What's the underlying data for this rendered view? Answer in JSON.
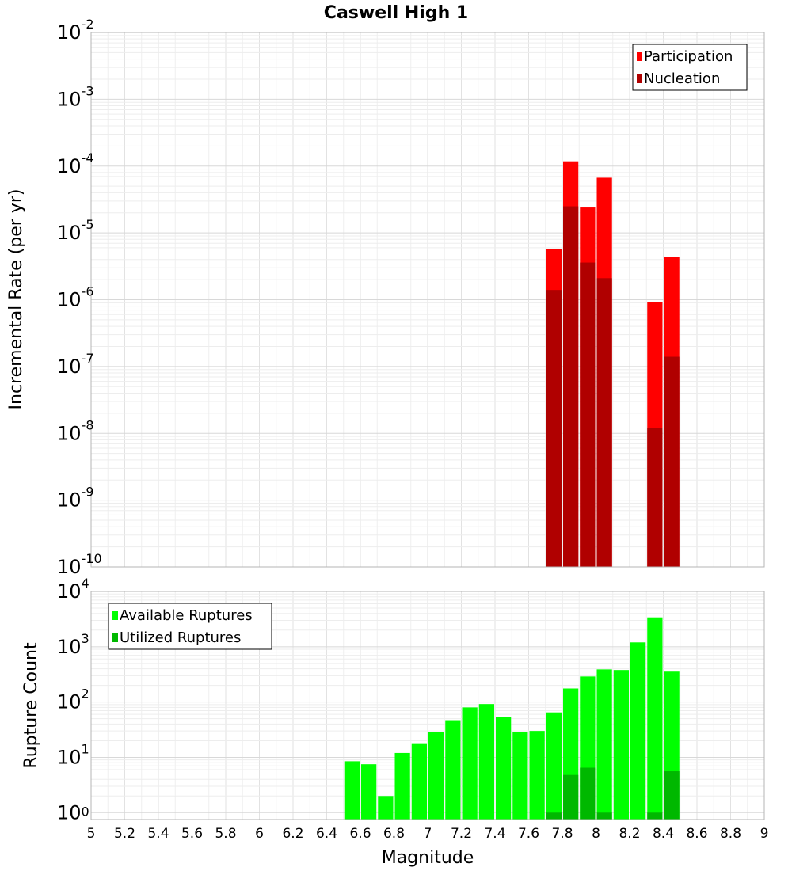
{
  "chart_data": [
    {
      "type": "bar",
      "title": "Caswell High 1",
      "ylabel": "Incremental Rate (per yr)",
      "xlabel": "",
      "y_scale": "log",
      "ylim": [
        1e-10,
        0.01
      ],
      "xlim": [
        5,
        9
      ],
      "bin_width": 0.1,
      "grid": true,
      "legend": "top-right",
      "x": [
        7.75,
        7.85,
        7.95,
        8.05,
        8.35,
        8.45
      ],
      "series": [
        {
          "name": "Participation",
          "color": "#ff0000",
          "values": [
            5.8e-06,
            0.000118,
            2.4e-05,
            6.7e-05,
            9.2e-07,
            4.4e-06
          ]
        },
        {
          "name": "Nucleation",
          "color": "#b00000",
          "values": [
            1.4e-06,
            2.5e-05,
            3.6e-06,
            2.1e-06,
            1.2e-08,
            1.4e-07
          ]
        }
      ]
    },
    {
      "type": "bar",
      "ylabel": "Rupture Count",
      "xlabel": "Magnitude",
      "y_scale": "log",
      "ylim": [
        0.75,
        10000
      ],
      "xlim": [
        5,
        9
      ],
      "bin_width": 0.1,
      "grid": true,
      "legend": "top-left",
      "xticks": [
        5,
        5.2,
        5.4,
        5.6,
        5.8,
        6,
        6.2,
        6.4,
        6.6,
        6.8,
        7,
        7.2,
        7.4,
        7.6,
        7.8,
        8,
        8.2,
        8.4,
        8.6,
        8.8,
        9
      ],
      "x": [
        6.55,
        6.65,
        6.75,
        6.85,
        6.95,
        7.05,
        7.15,
        7.25,
        7.35,
        7.45,
        7.55,
        7.65,
        7.75,
        7.85,
        7.95,
        8.05,
        8.15,
        8.25,
        8.35,
        8.45
      ],
      "series": [
        {
          "name": "Available Ruptures",
          "color": "#00ff00",
          "values": [
            8.5,
            7.5,
            2,
            12,
            18,
            29,
            47,
            80,
            92,
            53,
            29,
            30,
            65,
            176,
            290,
            390,
            380,
            1200,
            3400,
            355
          ]
        },
        {
          "name": "Utilized Ruptures",
          "color": "#00b800",
          "values": [
            null,
            null,
            null,
            null,
            null,
            null,
            null,
            null,
            null,
            null,
            null,
            null,
            1,
            4.8,
            6.5,
            1,
            null,
            null,
            1,
            5.6
          ]
        }
      ]
    }
  ]
}
